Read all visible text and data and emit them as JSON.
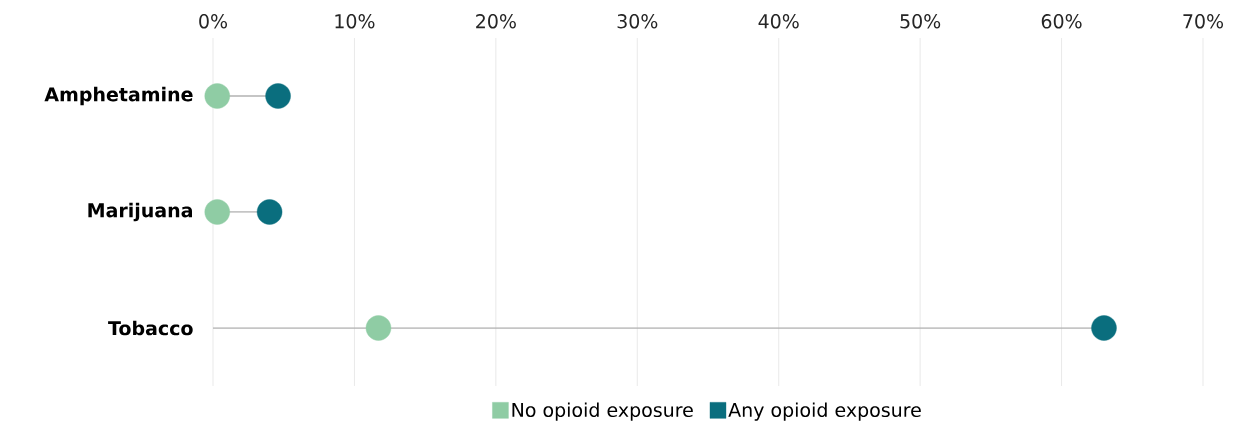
{
  "chart_data": {
    "type": "lollipop",
    "orientation": "horizontal",
    "categories": [
      "Amphetamine",
      "Marijuana",
      "Tobacco"
    ],
    "series": [
      {
        "name": "No opioid exposure",
        "color": "#8fcca4",
        "values": [
          0.3,
          0.3,
          11.7
        ]
      },
      {
        "name": "Any opioid exposure",
        "color": "#0a6e7e",
        "values": [
          4.6,
          4.0,
          63.0
        ]
      }
    ],
    "xlim": [
      0,
      70
    ],
    "xticks": [
      {
        "value": 0,
        "label": "0%"
      },
      {
        "value": 10,
        "label": "10%"
      },
      {
        "value": 20,
        "label": "20%"
      },
      {
        "value": 30,
        "label": "30%"
      },
      {
        "value": 40,
        "label": "40%"
      },
      {
        "value": 50,
        "label": "50%"
      },
      {
        "value": 60,
        "label": "60%"
      },
      {
        "value": 70,
        "label": "70%"
      }
    ],
    "grid": "x",
    "legend": "bottom"
  }
}
